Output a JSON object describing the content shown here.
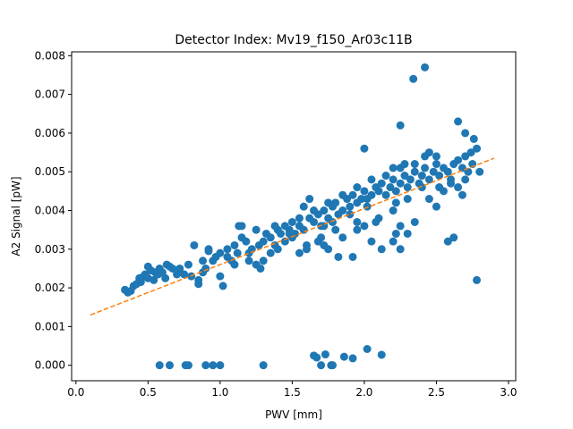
{
  "chart_data": {
    "type": "scatter",
    "title": "Detector Index: Mv19_f150_Ar03c11B",
    "xlabel": "PWV [mm]",
    "ylabel": "A2 Signal [pW]",
    "xlim": [
      -0.03,
      3.05
    ],
    "ylim": [
      -0.0004,
      0.0081
    ],
    "xticks": [
      0.0,
      0.5,
      1.0,
      1.5,
      2.0,
      2.5,
      3.0
    ],
    "xtick_labels": [
      "0.0",
      "0.5",
      "1.0",
      "1.5",
      "2.0",
      "2.5",
      "3.0"
    ],
    "yticks": [
      0.0,
      0.001,
      0.002,
      0.003,
      0.004,
      0.005,
      0.006,
      0.007,
      0.008
    ],
    "ytick_labels": [
      "0.000",
      "0.001",
      "0.002",
      "0.003",
      "0.004",
      "0.005",
      "0.006",
      "0.007",
      "0.008"
    ],
    "grid": false,
    "colors": {
      "points": "#1f77b4",
      "fit": "#ff7f0e"
    },
    "series": [
      {
        "name": "data",
        "kind": "points",
        "points": [
          [
            0.34,
            0.00195
          ],
          [
            0.36,
            0.00188
          ],
          [
            0.38,
            0.00192
          ],
          [
            0.4,
            0.00205
          ],
          [
            0.42,
            0.0021
          ],
          [
            0.44,
            0.00225
          ],
          [
            0.45,
            0.00215
          ],
          [
            0.47,
            0.0023
          ],
          [
            0.48,
            0.00235
          ],
          [
            0.5,
            0.00225
          ],
          [
            0.5,
            0.00255
          ],
          [
            0.52,
            0.00245
          ],
          [
            0.54,
            0.0022
          ],
          [
            0.55,
            0.0024
          ],
          [
            0.57,
            0.00235
          ],
          [
            0.58,
            0.0025
          ],
          [
            0.6,
            0.0024
          ],
          [
            0.62,
            0.00225
          ],
          [
            0.63,
            0.0026
          ],
          [
            0.65,
            0.00255
          ],
          [
            0.67,
            0.0025
          ],
          [
            0.7,
            0.00235
          ],
          [
            0.72,
            0.0025
          ],
          [
            0.78,
            0.0026
          ],
          [
            0.8,
            0.0023
          ],
          [
            0.82,
            0.0031
          ],
          [
            0.85,
            0.0021
          ],
          [
            0.88,
            0.0024
          ],
          [
            0.9,
            0.0025
          ],
          [
            0.92,
            0.00295
          ],
          [
            0.95,
            0.0027
          ],
          [
            0.97,
            0.0028
          ],
          [
            1.0,
            0.0029
          ],
          [
            1.0,
            0.0023
          ],
          [
            1.02,
            0.00205
          ],
          [
            1.05,
            0.0028
          ],
          [
            1.08,
            0.0027
          ],
          [
            1.1,
            0.0031
          ],
          [
            1.12,
            0.0029
          ],
          [
            1.13,
            0.0036
          ],
          [
            1.15,
            0.0033
          ],
          [
            1.18,
            0.0032
          ],
          [
            1.2,
            0.0029
          ],
          [
            1.22,
            0.003
          ],
          [
            1.25,
            0.0026
          ],
          [
            1.27,
            0.0031
          ],
          [
            1.3,
            0.0032
          ],
          [
            1.32,
            0.0034
          ],
          [
            1.35,
            0.0033
          ],
          [
            1.38,
            0.0031
          ],
          [
            1.4,
            0.0035
          ],
          [
            1.42,
            0.0034
          ],
          [
            1.45,
            0.0032
          ],
          [
            1.48,
            0.0035
          ],
          [
            1.5,
            0.0037
          ],
          [
            1.5,
            0.0033
          ],
          [
            1.52,
            0.0034
          ],
          [
            1.55,
            0.0036
          ],
          [
            1.58,
            0.0035
          ],
          [
            1.6,
            0.0031
          ],
          [
            1.62,
            0.0038
          ],
          [
            1.65,
            0.0037
          ],
          [
            1.68,
            0.0039
          ],
          [
            1.7,
            0.0036
          ],
          [
            1.72,
            0.004
          ],
          [
            1.75,
            0.0038
          ],
          [
            1.78,
            0.0041
          ],
          [
            1.8,
            0.0042
          ],
          [
            1.82,
            0.0039
          ],
          [
            1.85,
            0.004
          ],
          [
            1.88,
            0.0043
          ],
          [
            1.9,
            0.0041
          ],
          [
            1.92,
            0.0044
          ],
          [
            1.95,
            0.0042
          ],
          [
            1.98,
            0.0043
          ],
          [
            2.0,
            0.0045
          ],
          [
            2.02,
            0.0043
          ],
          [
            2.05,
            0.0044
          ],
          [
            2.08,
            0.0046
          ],
          [
            2.1,
            0.0045
          ],
          [
            2.12,
            0.0047
          ],
          [
            2.15,
            0.0044
          ],
          [
            2.18,
            0.0046
          ],
          [
            2.2,
            0.0048
          ],
          [
            2.22,
            0.0045
          ],
          [
            2.25,
            0.0047
          ],
          [
            2.28,
            0.0049
          ],
          [
            2.3,
            0.0046
          ],
          [
            2.32,
            0.0048
          ],
          [
            2.35,
            0.005
          ],
          [
            2.38,
            0.0047
          ],
          [
            2.4,
            0.0049
          ],
          [
            2.42,
            0.0051
          ],
          [
            2.45,
            0.0048
          ],
          [
            2.48,
            0.005
          ],
          [
            2.5,
            0.0052
          ],
          [
            2.52,
            0.0049
          ],
          [
            2.55,
            0.0051
          ],
          [
            2.58,
            0.005
          ],
          [
            2.6,
            0.0048
          ],
          [
            2.62,
            0.0052
          ],
          [
            2.65,
            0.0053
          ],
          [
            2.68,
            0.0051
          ],
          [
            2.7,
            0.0054
          ],
          [
            2.72,
            0.005
          ],
          [
            2.75,
            0.0052
          ],
          [
            2.78,
            0.0056
          ],
          [
            2.8,
            0.005
          ],
          [
            2.76,
            0.00585
          ],
          [
            2.74,
            0.0055
          ],
          [
            1.55,
            0.0029
          ],
          [
            1.6,
            0.003
          ],
          [
            1.7,
            0.0033
          ],
          [
            1.75,
            0.003
          ],
          [
            1.8,
            0.0035
          ],
          [
            1.85,
            0.0033
          ],
          [
            1.95,
            0.0037
          ],
          [
            2.0,
            0.0036
          ],
          [
            2.1,
            0.0038
          ],
          [
            2.2,
            0.004
          ],
          [
            1.45,
            0.0036
          ],
          [
            1.55,
            0.0038
          ],
          [
            1.65,
            0.004
          ],
          [
            1.75,
            0.0042
          ],
          [
            1.85,
            0.0044
          ],
          [
            1.95,
            0.0046
          ],
          [
            2.05,
            0.0048
          ],
          [
            2.15,
            0.0049
          ],
          [
            2.25,
            0.0051
          ],
          [
            2.35,
            0.0052
          ],
          [
            2.0,
            0.0056
          ],
          [
            2.2,
            0.0051
          ],
          [
            2.28,
            0.0052
          ],
          [
            2.42,
            0.0054
          ],
          [
            2.45,
            0.0055
          ],
          [
            2.5,
            0.0054
          ],
          [
            2.6,
            0.0047
          ],
          [
            2.65,
            0.0046
          ],
          [
            2.7,
            0.0048
          ],
          [
            2.55,
            0.0045
          ],
          [
            2.4,
            0.0046
          ],
          [
            2.3,
            0.0043
          ],
          [
            2.22,
            0.0042
          ],
          [
            2.25,
            0.0036
          ],
          [
            2.3,
            0.0034
          ],
          [
            2.35,
            0.0037
          ],
          [
            2.08,
            0.0037
          ],
          [
            2.05,
            0.0032
          ],
          [
            2.12,
            0.003
          ],
          [
            1.95,
            0.0035
          ],
          [
            1.92,
            0.0028
          ],
          [
            1.82,
            0.0028
          ],
          [
            1.72,
            0.0031
          ],
          [
            1.68,
            0.0032
          ],
          [
            2.2,
            0.0032
          ],
          [
            2.25,
            0.003
          ],
          [
            2.5,
            0.0041
          ],
          [
            2.58,
            0.0032
          ],
          [
            2.62,
            0.0033
          ],
          [
            1.4,
            0.003
          ],
          [
            1.35,
            0.0029
          ],
          [
            1.3,
            0.0027
          ],
          [
            1.28,
            0.0025
          ],
          [
            1.2,
            0.0027
          ],
          [
            1.1,
            0.0026
          ],
          [
            1.05,
            0.003
          ],
          [
            0.92,
            0.003
          ],
          [
            0.88,
            0.0027
          ],
          [
            0.85,
            0.0022
          ],
          [
            0.75,
            0.00235
          ],
          [
            2.25,
            0.0062
          ],
          [
            2.34,
            0.0074
          ],
          [
            2.42,
            0.0077
          ],
          [
            2.65,
            0.0063
          ],
          [
            2.7,
            0.006
          ],
          [
            2.78,
            0.0022
          ],
          [
            2.22,
            0.0034
          ],
          [
            2.45,
            0.0043
          ],
          [
            2.52,
            0.0046
          ],
          [
            2.68,
            0.0044
          ],
          [
            1.15,
            0.0036
          ],
          [
            1.25,
            0.0035
          ],
          [
            1.38,
            0.0036
          ],
          [
            1.48,
            0.0034
          ],
          [
            1.58,
            0.0041
          ],
          [
            1.62,
            0.0043
          ],
          [
            1.72,
            0.0036
          ],
          [
            1.78,
            0.0037
          ],
          [
            1.9,
            0.0039
          ],
          [
            2.02,
            0.0041
          ],
          [
            0.58,
            0.0
          ],
          [
            0.65,
            0.0
          ],
          [
            0.76,
            0.0
          ],
          [
            0.78,
            0.0
          ],
          [
            0.9,
            0.0
          ],
          [
            0.95,
            0.0
          ],
          [
            1.0,
            0.0
          ],
          [
            1.3,
            0.0
          ],
          [
            1.65,
            0.00025
          ],
          [
            1.67,
            0.0002
          ],
          [
            1.7,
            0.0
          ],
          [
            1.73,
            0.00028
          ],
          [
            1.77,
            0.0
          ],
          [
            1.78,
            0.0
          ],
          [
            1.86,
            0.00022
          ],
          [
            1.92,
            0.00018
          ],
          [
            2.02,
            0.00042
          ],
          [
            2.12,
            0.00027
          ]
        ]
      },
      {
        "name": "linear fit",
        "kind": "dashed-line",
        "points": [
          [
            0.1,
            0.0013
          ],
          [
            2.9,
            0.00535
          ]
        ]
      }
    ]
  }
}
